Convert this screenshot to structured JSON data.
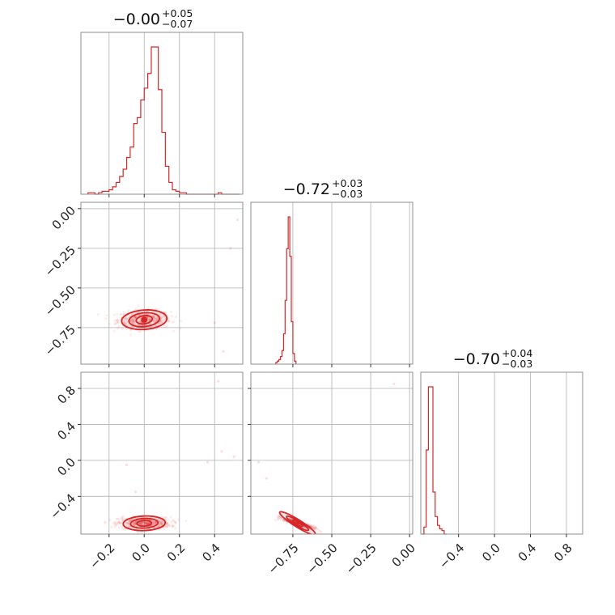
{
  "chart_data": [
    {
      "type": "histogram",
      "panel": "diag-0",
      "title": {
        "value": "−0.00",
        "plus": "+0.05",
        "minus": "−0.07"
      },
      "xlim": [
        -0.36,
        0.56
      ],
      "bins": {
        "start": -0.32,
        "width": 0.02,
        "counts": [
          1,
          1,
          0,
          1,
          2,
          2,
          3,
          5,
          8,
          12,
          17,
          25,
          32,
          48,
          52,
          64,
          72,
          82,
          100,
          100,
          71,
          42,
          19,
          8,
          3,
          2,
          1,
          1,
          0,
          0,
          0,
          0,
          0,
          0,
          0,
          0,
          0,
          1,
          0,
          0,
          0,
          0,
          0
        ]
      },
      "xticks": [
        -0.2,
        0.0,
        0.2,
        0.4
      ],
      "grid": true
    },
    {
      "type": "histogram",
      "panel": "diag-1",
      "title": {
        "value": "−0.72",
        "plus": "+0.03",
        "minus": "−0.03"
      },
      "xlim": [
        -1.02,
        0.02
      ],
      "bins": {
        "start": -0.86,
        "width": 0.01,
        "counts": [
          1,
          2,
          3,
          5,
          9,
          20,
          42,
          76,
          97,
          71,
          28,
          7,
          2
        ]
      },
      "xticks": [
        -0.75,
        -0.5,
        -0.25,
        0.0
      ],
      "xtick_labels": [
        "−0.75",
        "−0.50",
        "−0.25",
        "0.00"
      ],
      "grid": true
    },
    {
      "type": "histogram",
      "panel": "diag-2",
      "title": {
        "value": "−0.70",
        "plus": "+0.04",
        "minus": "−0.03"
      },
      "xlim": [
        -0.82,
        0.98
      ],
      "bins": {
        "start": -0.81,
        "width": 0.025,
        "counts": [
          0,
          4,
          48,
          84,
          84,
          24,
          10,
          5,
          3,
          2,
          0
        ]
      },
      "xticks": [
        -0.4,
        0.0,
        0.4,
        0.8
      ],
      "xtick_labels": [
        "−0.4",
        "0.0",
        "0.4",
        "0.8"
      ],
      "grid": true
    },
    {
      "type": "scatter",
      "panel": "lower-1-0",
      "xlim": [
        -0.36,
        0.56
      ],
      "ylim": [
        -0.98,
        0.04
      ],
      "center": [
        0.0,
        -0.7
      ],
      "yticks": [
        0.0,
        -0.25,
        -0.5,
        -0.75
      ],
      "ytick_labels": [
        "0.00",
        "−0.25",
        "−0.50",
        "−0.75"
      ],
      "grid": true
    },
    {
      "type": "scatter",
      "panel": "lower-2-0",
      "xlim": [
        -0.36,
        0.56
      ],
      "ylim": [
        -0.82,
        0.98
      ],
      "center": [
        0.0,
        -0.7
      ],
      "xticks": [
        -0.2,
        0.0,
        0.2,
        0.4
      ],
      "xtick_labels": [
        "−0.2",
        "0.0",
        "0.2",
        "0.4"
      ],
      "yticks": [
        0.8,
        0.4,
        0.0,
        -0.4
      ],
      "ytick_labels": [
        "0.8",
        "0.4",
        "0.0",
        "−0.4"
      ],
      "grid": true
    },
    {
      "type": "scatter",
      "panel": "lower-2-1",
      "xlim": [
        -1.02,
        0.02
      ],
      "ylim": [
        -0.82,
        0.98
      ],
      "center": [
        -0.72,
        -0.7
      ],
      "xticks": [
        -0.75,
        -0.5,
        -0.25,
        0.0
      ],
      "xtick_labels": [
        "−0.75",
        "−0.50",
        "−0.25",
        "0.00"
      ],
      "grid": true
    }
  ],
  "colors": {
    "accent": "#d62728",
    "grid": "#b0b0b0",
    "axes": "#8c8c8c"
  }
}
